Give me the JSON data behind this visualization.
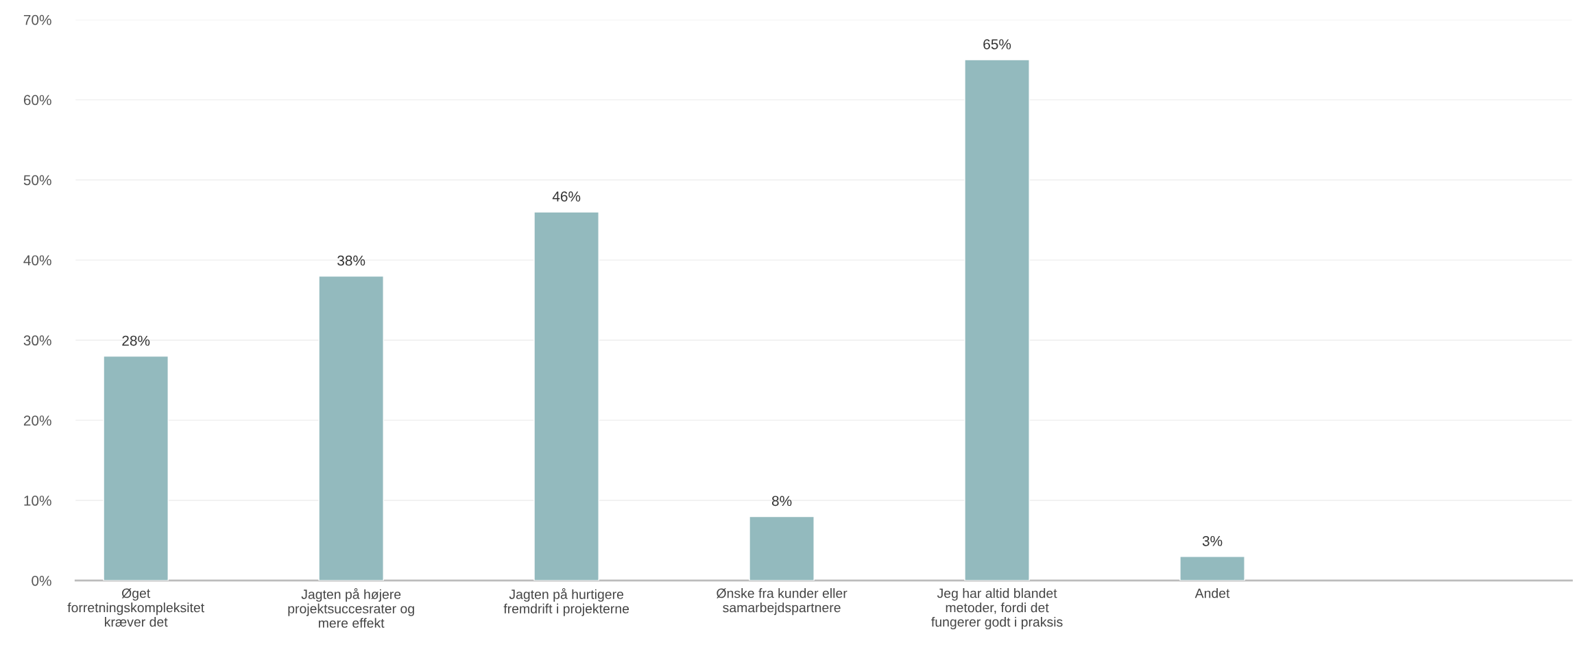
{
  "chart_data": {
    "type": "bar",
    "categories": [
      "Øget\nforretningskompleksitet\nkræver det",
      "Jagten på højere\nprojektsuccesrater og\nmere effekt",
      "Jagten på hurtigere\nfremdrift i projekterne",
      "Ønske fra kunder eller\nsamarbejdspartnere",
      "Jeg har altid blandet\nmetoder, fordi det\nfungerer godt i praksis",
      "Andet",
      null
    ],
    "values": [
      28,
      38,
      46,
      8,
      65,
      3,
      null
    ],
    "color": "#93babe",
    "value_labels": [
      "28%",
      "38%",
      "46%",
      "8%",
      "65%",
      "3%",
      null
    ],
    "ylim": [
      0,
      70
    ],
    "yticks": [
      {
        "value": 0,
        "label": "0%"
      },
      {
        "value": 10,
        "label": "10%"
      },
      {
        "value": 20,
        "label": "20%"
      },
      {
        "value": 30,
        "label": "30%"
      },
      {
        "value": 40,
        "label": "40%"
      },
      {
        "value": 50,
        "label": "50%"
      },
      {
        "value": 60,
        "label": "60%"
      },
      {
        "value": 70,
        "label": "70%"
      }
    ],
    "grid": "y",
    "legend": false
  }
}
